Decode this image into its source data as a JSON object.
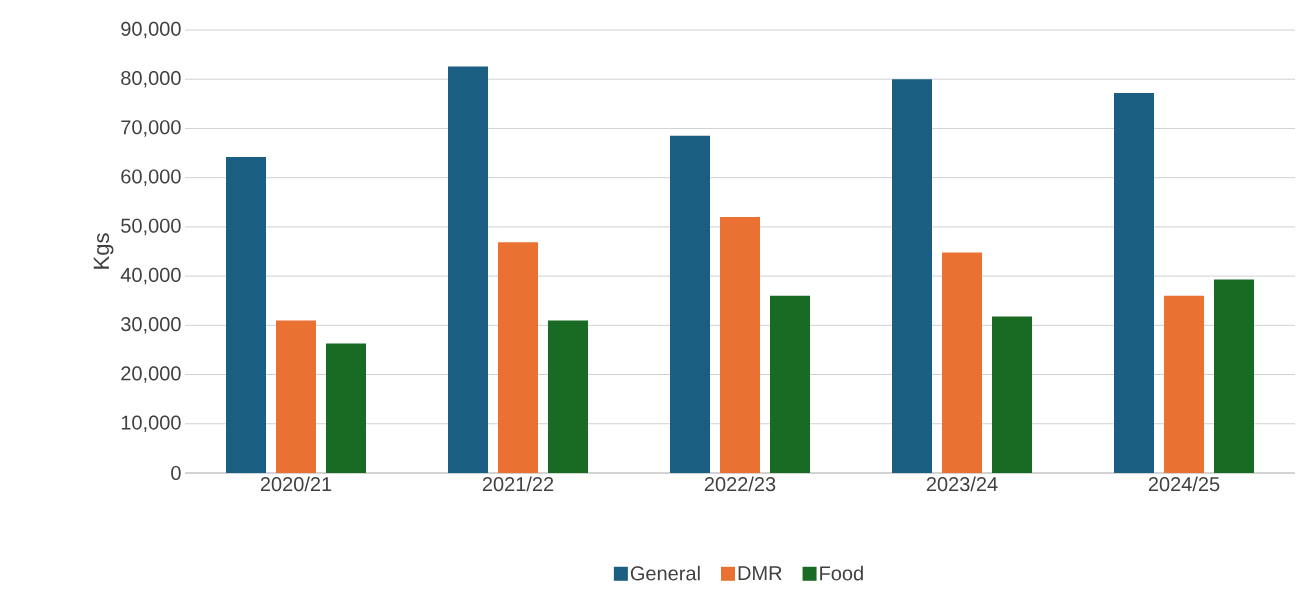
{
  "chart_data": {
    "type": "bar",
    "ylabel": "Kgs",
    "categories": [
      "2020/21",
      "2021/22",
      "2022/23",
      "2023/24",
      "2024/25"
    ],
    "series": [
      {
        "name": "General",
        "color": "#1a5e82",
        "values": [
          64200,
          82600,
          68500,
          80000,
          77200
        ]
      },
      {
        "name": "DMR",
        "color": "#e97132",
        "values": [
          31000,
          46900,
          52000,
          44800,
          36000
        ]
      },
      {
        "name": "Food",
        "color": "#196b24",
        "values": [
          26300,
          31000,
          36000,
          31800,
          39300
        ]
      }
    ],
    "ylim": [
      0,
      90000
    ],
    "yticks": [
      {
        "value": 0,
        "label": "0"
      },
      {
        "value": 10000,
        "label": "10,000"
      },
      {
        "value": 20000,
        "label": "20,000"
      },
      {
        "value": 30000,
        "label": "30,000"
      },
      {
        "value": 40000,
        "label": "40,000"
      },
      {
        "value": 50000,
        "label": "50,000"
      },
      {
        "value": 60000,
        "label": "60,000"
      },
      {
        "value": 70000,
        "label": "70,000"
      },
      {
        "value": 80000,
        "label": "80,000"
      },
      {
        "value": 90000,
        "label": "90,000"
      }
    ],
    "grid": "y",
    "legend": "bottom"
  }
}
